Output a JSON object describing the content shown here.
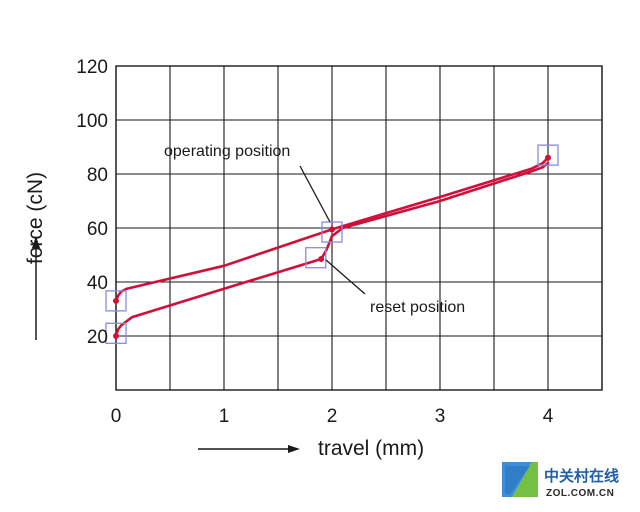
{
  "chart_data": {
    "type": "line",
    "xlabel": "travel (mm)",
    "ylabel": "force (cN)",
    "xlim": [
      0,
      4.5
    ],
    "ylim": [
      0,
      120
    ],
    "xticks": [
      0,
      1,
      2,
      3,
      4
    ],
    "yticks": [
      20,
      40,
      60,
      80,
      100,
      120
    ],
    "grid": true,
    "series": [
      {
        "values_desc": "press stroke",
        "color": "#d0103a",
        "x": [
          0.0,
          0.02,
          0.05,
          0.1,
          1.0,
          2.0,
          3.0,
          3.85,
          3.95,
          4.0
        ],
        "y": [
          33,
          35,
          36.5,
          37.5,
          46,
          59.5,
          71.5,
          82,
          84,
          86
        ]
      },
      {
        "values_desc": "return stroke",
        "color": "#d0103a",
        "x": [
          4.0,
          3.95,
          3.85,
          3.0,
          2.1,
          2.0,
          1.95,
          1.9,
          1.0,
          0.15,
          0.05,
          0.02,
          0.0
        ],
        "y": [
          84,
          82.5,
          81,
          70,
          60,
          57,
          52,
          48.5,
          37.5,
          27,
          24,
          22.5,
          20
        ]
      }
    ],
    "markers": [
      {
        "x": 0.0,
        "y": 33
      },
      {
        "x": 0.0,
        "y": 20
      },
      {
        "x": 2.0,
        "y": 59.5
      },
      {
        "x": 1.9,
        "y": 48.5
      },
      {
        "x": 4.0,
        "y": 86
      }
    ],
    "boxes": [
      {
        "x": 0.0,
        "y": 33
      },
      {
        "x": 0.0,
        "y": 21
      },
      {
        "x": 2.0,
        "y": 58.5
      },
      {
        "x": 1.85,
        "y": 49
      },
      {
        "x": 4.0,
        "y": 87
      }
    ],
    "annotations": [
      {
        "text": "operating position",
        "target": {
          "x": 2.0,
          "y": 59.5
        }
      },
      {
        "text": "reset position",
        "target": {
          "x": 1.9,
          "y": 48.5
        }
      }
    ],
    "colors": {
      "curve": "#d0103a",
      "grid": "#1a1a1a",
      "box": "#8a8ae0"
    }
  },
  "watermark": {
    "cn": "中关村在线",
    "en": "ZOL.COM.CN"
  }
}
